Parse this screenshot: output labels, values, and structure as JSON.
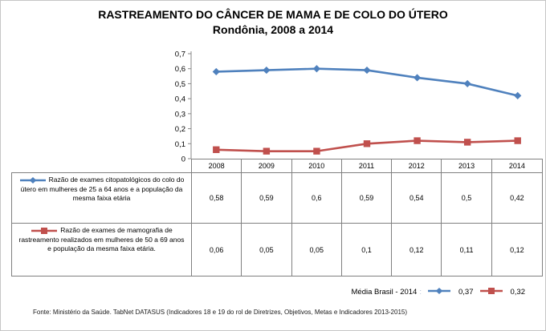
{
  "title": {
    "line1": "RASTREAMENTO DO CÂNCER DE MAMA E DE COLO DO ÚTERO",
    "line2": "Rondônia, 2008 a 2014"
  },
  "chart_data": {
    "type": "line",
    "categories": [
      "2008",
      "2009",
      "2010",
      "2011",
      "2012",
      "2013",
      "2014"
    ],
    "series": [
      {
        "name": "Razão de exames citopatológicos do colo do útero em mulheres de 25 a 64 anos e a população da mesma faixa etária",
        "values": [
          0.58,
          0.59,
          0.6,
          0.59,
          0.54,
          0.5,
          0.42
        ],
        "display_values": [
          "0,58",
          "0,59",
          "0,6",
          "0,59",
          "0,54",
          "0,5",
          "0,42"
        ],
        "color": "#4F81BD",
        "marker": "diamond"
      },
      {
        "name": "Razão de exames de mamografia de rastreamento realizados em mulheres de 50 a 69 anos e população da mesma faixa etária.",
        "values": [
          0.06,
          0.05,
          0.05,
          0.1,
          0.12,
          0.11,
          0.12
        ],
        "display_values": [
          "0,06",
          "0,05",
          "0,05",
          "0,1",
          "0,12",
          "0,11",
          "0,12"
        ],
        "color": "#C0504D",
        "marker": "square"
      }
    ],
    "title": "RASTREAMENTO DO CÂNCER DE MAMA E DE COLO DO ÚTERO — Rondônia, 2008 a 2014",
    "xlabel": "",
    "ylabel": "",
    "ylim": [
      0,
      0.7
    ],
    "ytick_step": 0.1,
    "ytick_labels": [
      "0",
      "0,1",
      "0,2",
      "0,3",
      "0,4",
      "0,5",
      "0,6",
      "0,7"
    ],
    "grid": false,
    "legend_position": "data-table-left",
    "axis_color": "#898989"
  },
  "media_brasil": {
    "label": "Média Brasil - 2014",
    "separator": ":",
    "values": [
      "0,37",
      "0,32"
    ]
  },
  "footer": {
    "source": "Fonte: Ministério da Saúde. TabNet DATASUS (Indicadores 18 e 19 do rol de Diretrizes, Objetivos, Metas e Indicadores 2013-2015)"
  }
}
